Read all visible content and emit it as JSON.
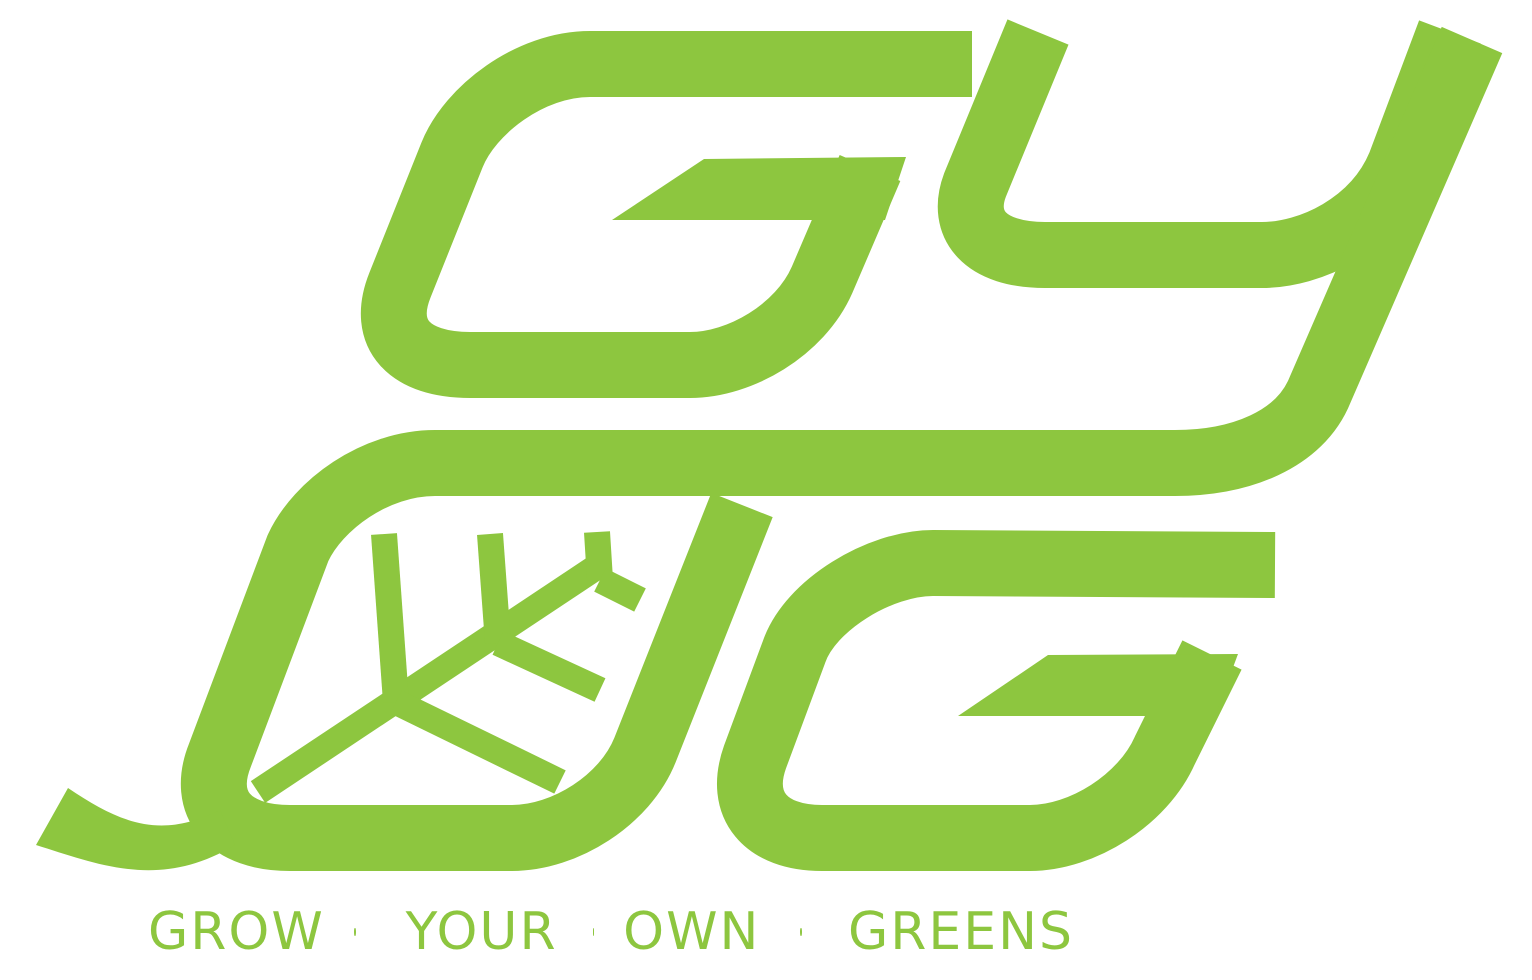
{
  "brand": {
    "color": "#8dc63f",
    "mark_icon": "gyog-leaf-monogram-icon"
  },
  "tagline": {
    "word_1": "GROW",
    "word_2": "YOUR",
    "word_3": "OWN",
    "word_4": "GREENS",
    "separator_icon": "dot-icon"
  }
}
